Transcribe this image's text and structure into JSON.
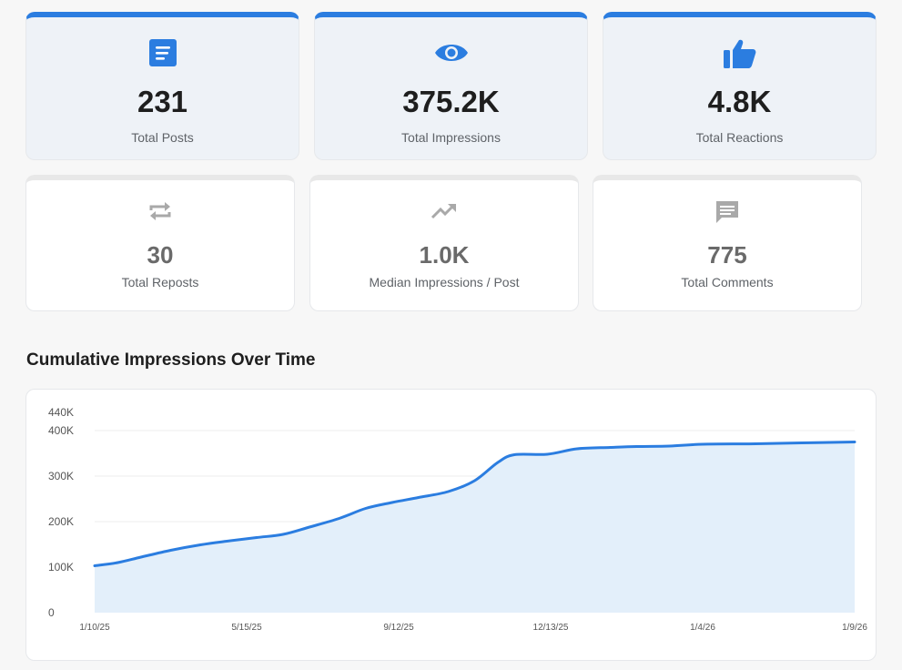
{
  "colors": {
    "accent": "#2b7de0",
    "area_fill": "#e3effa",
    "muted_icon": "#a9a9a9"
  },
  "primary_stats": [
    {
      "icon": "document-icon",
      "value": "231",
      "label": "Total Posts"
    },
    {
      "icon": "eye-icon",
      "value": "375.2K",
      "label": "Total Impressions"
    },
    {
      "icon": "thumbs-up-icon",
      "value": "4.8K",
      "label": "Total Reactions"
    }
  ],
  "secondary_stats": [
    {
      "icon": "repost-icon",
      "value": "30",
      "label": "Total Reposts"
    },
    {
      "icon": "trending-up-icon",
      "value": "1.0K",
      "label": "Median Impressions / Post"
    },
    {
      "icon": "comment-icon",
      "value": "775",
      "label": "Total Comments"
    }
  ],
  "chart_title": "Cumulative Impressions Over Time",
  "chart_data": {
    "type": "area",
    "title": "Cumulative Impressions Over Time",
    "xlabel": "",
    "ylabel": "",
    "ylim": [
      0,
      440000
    ],
    "yticks": [
      0,
      100000,
      200000,
      300000,
      400000,
      440000
    ],
    "ytick_labels": [
      "0",
      "100K",
      "200K",
      "300K",
      "400K",
      "440K"
    ],
    "x_tick_labels": [
      "1/10/25",
      "5/15/25",
      "9/12/25",
      "12/13/25",
      "1/4/26",
      "1/9/26"
    ],
    "x_tick_positions": [
      1,
      47,
      93,
      139,
      185,
      231
    ],
    "xlim": [
      1,
      231
    ],
    "grid": true,
    "legend": "none",
    "x": [
      1,
      8,
      15,
      24,
      33,
      41,
      50,
      58,
      66,
      75,
      83,
      91,
      99,
      108,
      116,
      123,
      128,
      138,
      147,
      157,
      165,
      175,
      185,
      201,
      215,
      231
    ],
    "y": [
      103000,
      110000,
      122000,
      137000,
      149000,
      157000,
      165000,
      172000,
      188000,
      207000,
      229000,
      242000,
      253000,
      266000,
      290000,
      330000,
      347000,
      348000,
      360000,
      363000,
      365000,
      366000,
      370000,
      371000,
      373000,
      375000
    ]
  }
}
